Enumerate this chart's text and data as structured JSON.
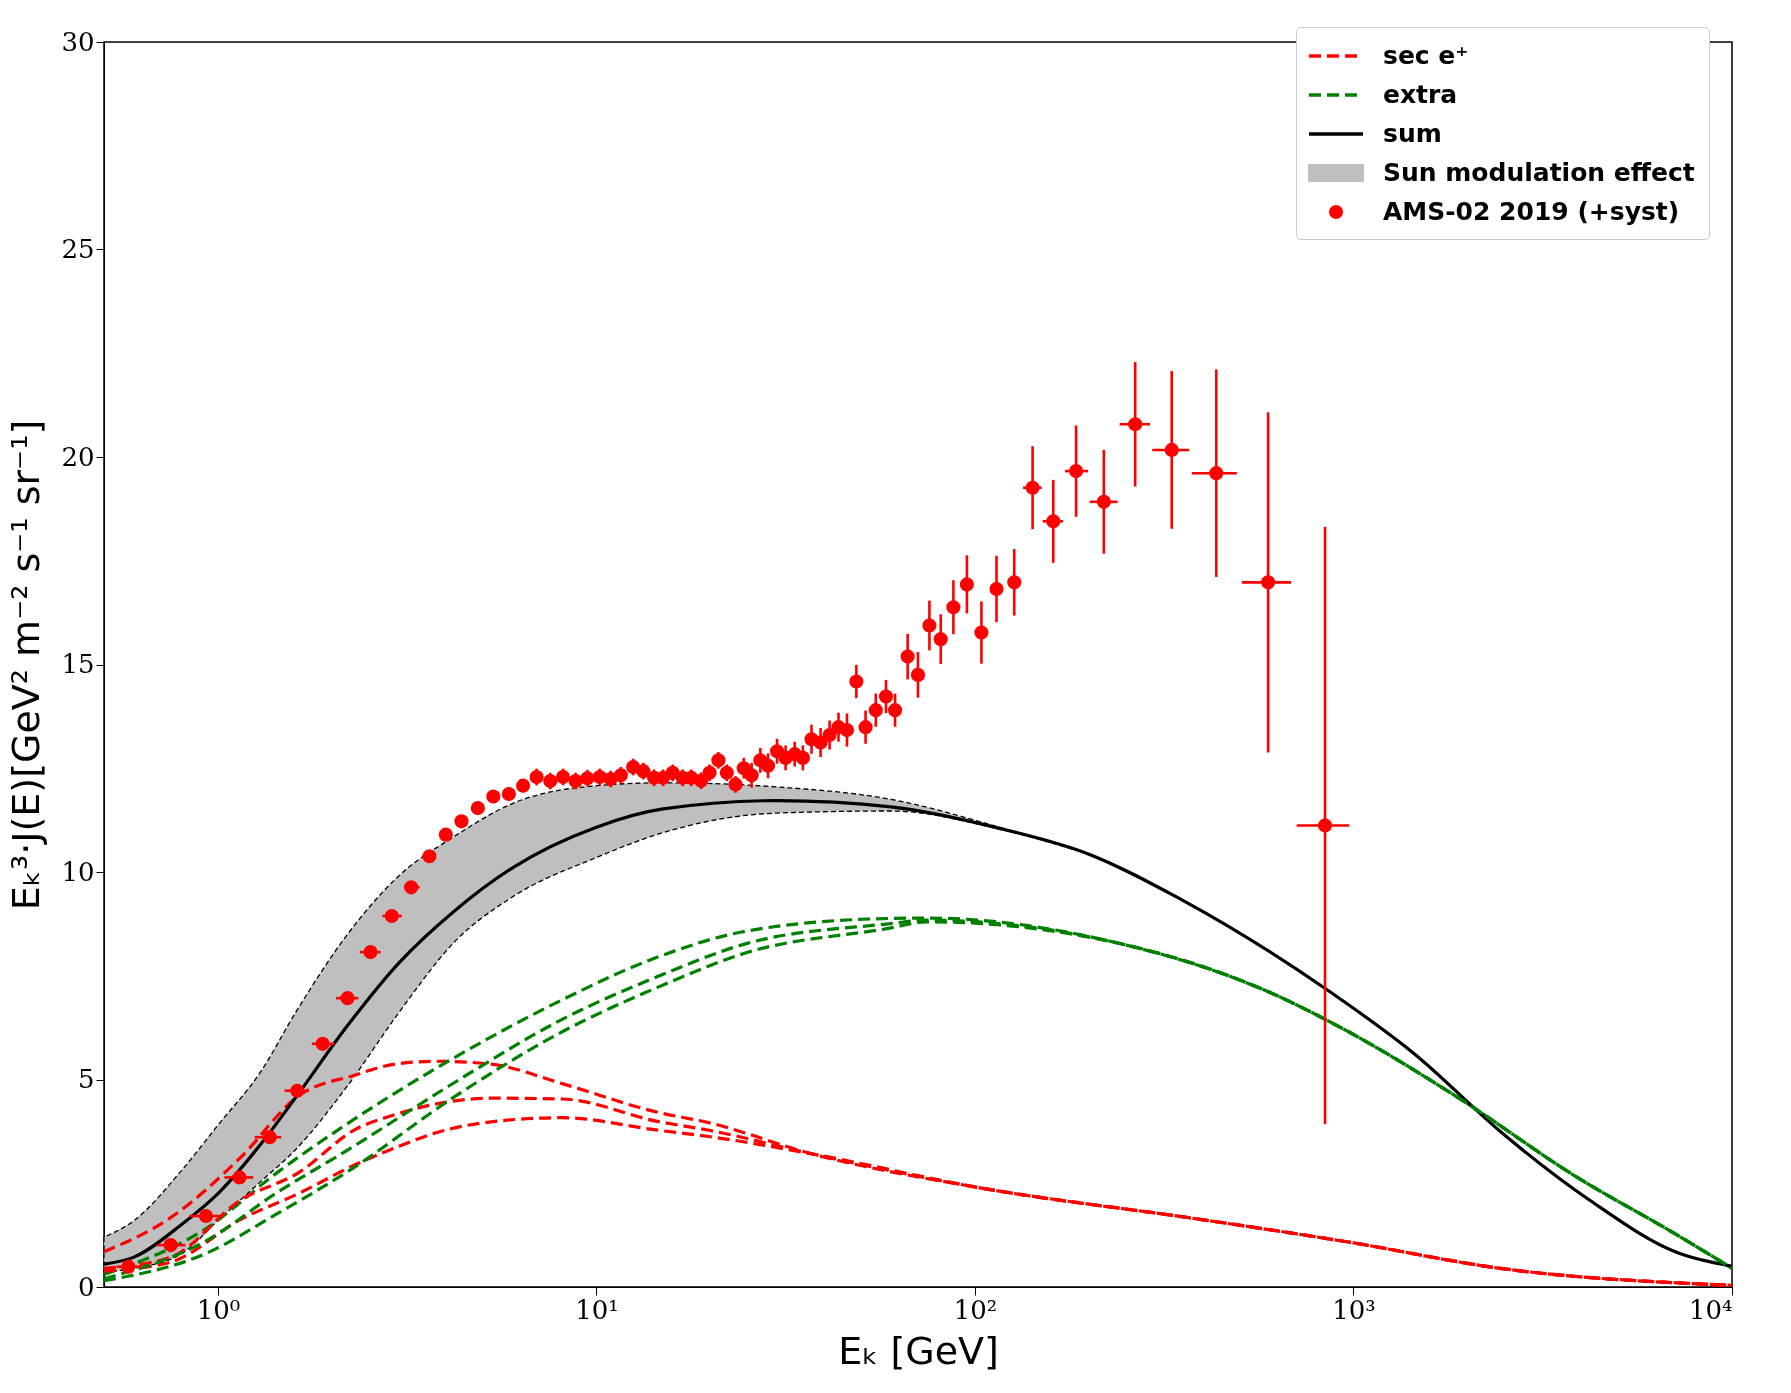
{
  "chart_data": {
    "type": "line",
    "xlabel": "Eₖ [GeV]",
    "ylabel": "Eₖ³·J(E)[GeV² m⁻² s⁻¹ sr⁻¹]",
    "log": "x",
    "xlim": [
      0.5,
      10000
    ],
    "ylim": [
      0,
      30
    ],
    "xticks": [
      {
        "value": 1,
        "label": "10⁰"
      },
      {
        "value": 10,
        "label": "10¹"
      },
      {
        "value": 100,
        "label": "10²"
      },
      {
        "value": 1000,
        "label": "10³"
      },
      {
        "value": 10000,
        "label": "10⁴"
      }
    ],
    "yticks": [
      0,
      5,
      10,
      15,
      20,
      25,
      30
    ],
    "grid": false,
    "legend": "top right",
    "series": [
      {
        "name": "sec e⁺",
        "line_style": "dashed",
        "color": "#ff0000",
        "x": [
          0.5,
          0.75,
          1.15,
          1.63,
          2.31,
          2.93,
          3.81,
          5.27,
          8.12,
          14.5,
          20,
          37,
          103,
          380,
          961,
          2440,
          10000
        ],
        "values": [
          0.85,
          1.67,
          3.13,
          4.6,
          5.11,
          5.37,
          5.44,
          5.37,
          4.9,
          4.21,
          3.95,
          3.21,
          2.39,
          1.65,
          1.09,
          0.45,
          0.04
        ]
      },
      {
        "name": "extra",
        "line_style": "dashed",
        "color": "#008000",
        "x": [
          0.5,
          0.93,
          1.43,
          2.21,
          4.24,
          8.12,
          14.5,
          25,
          59,
          74.6,
          238,
          604,
          961,
          1930,
          3870,
          7080,
          10000
        ],
        "values": [
          0.3,
          1.41,
          2.75,
          3.95,
          5.54,
          6.92,
          7.95,
          8.58,
          8.88,
          8.89,
          8.29,
          7.09,
          6.17,
          4.51,
          2.66,
          1.28,
          0.45
        ]
      },
      {
        "name": "sum",
        "line_style": "solid",
        "color": "#000000",
        "x": [
          0.5,
          0.6,
          0.8,
          1,
          1.3,
          1.6,
          2.2,
          3,
          4.2,
          6,
          10,
          15,
          30,
          60,
          114,
          200,
          352,
          855,
          1452,
          2470,
          4210,
          7160,
          10000
        ],
        "values": [
          0.55,
          0.72,
          1.5,
          2.25,
          3.45,
          4.55,
          6.3,
          7.8,
          9.05,
          10.1,
          11.08,
          11.52,
          11.72,
          11.57,
          11.07,
          10.43,
          9.33,
          7.15,
          5.61,
          3.71,
          2.09,
          0.83,
          0.5
        ]
      },
      {
        "name": "Sun modulation effect",
        "color": "#bfbfbf",
        "x": [
          0.5,
          0.6,
          0.8,
          1,
          1.3,
          1.6,
          2.2,
          3,
          4.2,
          6,
          10,
          15,
          30,
          60,
          114,
          200
        ],
        "values": [
          null,
          null,
          null,
          null,
          null,
          null,
          null,
          null,
          null,
          null,
          null,
          null,
          null,
          null,
          null,
          null
        ],
        "upper": [
          1.2,
          1.6,
          2.8,
          3.9,
          5.2,
          6.6,
          8.5,
          9.9,
          10.85,
          11.65,
          12.08,
          12.15,
          12.05,
          11.75,
          11.1,
          10.43
        ],
        "lower": [
          0.35,
          0.45,
          0.8,
          1.6,
          2.55,
          3.3,
          4.85,
          6.6,
          8.3,
          9.4,
          10.35,
          10.95,
          11.42,
          11.47,
          11.05,
          10.43
        ]
      },
      {
        "name": "AMS-02 2019 (+syst)",
        "type": "scatter",
        "marker": "circle",
        "color": "#ff0000",
        "x": [
          0.58,
          0.75,
          0.93,
          1.14,
          1.37,
          1.62,
          1.89,
          2.2,
          2.53,
          2.88,
          3.24,
          3.62,
          4.0,
          4.4,
          4.86,
          5.34,
          5.87,
          6.4,
          6.95,
          7.55,
          8.16,
          8.81,
          9.46,
          10.2,
          10.9,
          11.6,
          12.5,
          13.3,
          14.2,
          15.0,
          15.9,
          16.9,
          17.8,
          18.9,
          19.9,
          21.0,
          22.1,
          23.3,
          24.5,
          25.7,
          27.1,
          28.4,
          30.0,
          31.6,
          33.4,
          35.1,
          37.0,
          39.1,
          41.3,
          43.6,
          45.9,
          48.6,
          51.4,
          54.7,
          58.2,
          61.5,
          66.4,
          70.7,
          75.8,
          81.2,
          87.7,
          95.2,
          104,
          114,
          127,
          142,
          161,
          185,
          219,
          265,
          331,
          434,
          595,
          841
        ],
        "values": [
          0.49,
          1.01,
          1.71,
          2.64,
          3.61,
          4.73,
          5.86,
          6.96,
          8.07,
          8.94,
          9.63,
          10.38,
          10.9,
          11.22,
          11.54,
          11.82,
          11.88,
          12.08,
          12.29,
          12.19,
          12.29,
          12.19,
          12.26,
          12.29,
          12.24,
          12.33,
          12.53,
          12.43,
          12.27,
          12.27,
          12.39,
          12.27,
          12.27,
          12.2,
          12.39,
          12.69,
          12.39,
          12.11,
          12.5,
          12.33,
          12.69,
          12.56,
          12.91,
          12.75,
          12.84,
          12.75,
          13.2,
          13.12,
          13.3,
          13.49,
          13.42,
          14.59,
          13.49,
          13.9,
          14.23,
          13.9,
          15.19,
          14.75,
          15.94,
          15.61,
          16.38,
          16.93,
          15.77,
          16.82,
          16.98,
          19.26,
          18.45,
          19.66,
          18.92,
          20.79,
          20.17,
          19.61,
          16.98,
          11.12
        ],
        "errors": [
          0.1,
          0.1,
          0.1,
          0.1,
          0.1,
          0.1,
          0.1,
          0.1,
          0.1,
          0.1,
          0.1,
          0.15,
          0.15,
          0.15,
          0.15,
          0.15,
          0.15,
          0.15,
          0.2,
          0.2,
          0.2,
          0.2,
          0.2,
          0.2,
          0.2,
          0.2,
          0.2,
          0.2,
          0.2,
          0.2,
          0.2,
          0.2,
          0.2,
          0.2,
          0.2,
          0.2,
          0.2,
          0.2,
          0.25,
          0.3,
          0.3,
          0.3,
          0.3,
          0.3,
          0.3,
          0.3,
          0.35,
          0.35,
          0.35,
          0.35,
          0.4,
          0.4,
          0.4,
          0.4,
          0.4,
          0.4,
          0.55,
          0.55,
          0.6,
          0.6,
          0.65,
          0.7,
          0.75,
          0.8,
          0.8,
          1.0,
          1.0,
          1.1,
          1.25,
          1.5,
          1.9,
          2.5,
          4.1,
          7.2
        ],
        "xerrors": [
          [
            0.54,
            0.63
          ],
          [
            0.69,
            0.82
          ],
          [
            0.84,
            1.02
          ],
          [
            1.04,
            1.24
          ],
          [
            1.25,
            1.47
          ],
          [
            1.5,
            1.74
          ],
          [
            1.77,
            2.03
          ],
          [
            2.05,
            2.35
          ],
          [
            2.37,
            2.69
          ],
          [
            2.72,
            3.06
          ],
          [
            3.1,
            3.41
          ],
          null,
          null,
          null,
          null,
          null,
          null,
          null,
          null,
          null,
          null,
          null,
          null,
          null,
          null,
          null,
          null,
          null,
          null,
          null,
          null,
          null,
          null,
          null,
          null,
          null,
          null,
          null,
          null,
          null,
          null,
          null,
          null,
          null,
          null,
          null,
          null,
          null,
          null,
          null,
          null,
          null,
          null,
          null,
          null,
          null,
          null,
          null,
          null,
          null,
          null,
          null,
          null,
          null,
          null,
          [
            134,
            150
          ],
          [
            151,
            171
          ],
          [
            173,
            199
          ],
          [
            201,
            238
          ],
          [
            241,
            290
          ],
          [
            294,
            368
          ],
          [
            374,
            492
          ],
          [
            507,
            684
          ],
          [
            708,
            975
          ]
        ]
      },
      {
        "line_style": "dashed",
        "color": "#ff0000",
        "x": [
          0.5,
          0.75,
          1.15,
          1.63,
          2.31,
          2.93,
          3.81,
          5.27,
          8.12,
          14.5,
          20,
          37,
          103,
          380,
          961,
          2440,
          10000
        ],
        "values": [
          0.45,
          0.72,
          2.1,
          2.75,
          3.8,
          4.15,
          4.42,
          4.55,
          4.53,
          3.99,
          3.77,
          3.21,
          2.39,
          1.65,
          1.09,
          0.45,
          0.04
        ]
      },
      {
        "line_style": "dashed",
        "color": "#ff0000",
        "x": [
          0.5,
          0.75,
          1.15,
          1.63,
          2.31,
          2.93,
          3.81,
          5.27,
          8.12,
          14.5,
          20,
          37,
          103,
          380,
          961,
          2440,
          10000
        ],
        "values": [
          0.38,
          0.6,
          1.63,
          2.25,
          2.95,
          3.35,
          3.73,
          3.98,
          4.08,
          3.78,
          3.62,
          3.21,
          2.39,
          1.65,
          1.09,
          0.45,
          0.04
        ]
      },
      {
        "line_style": "dashed",
        "color": "#008000",
        "x": [
          0.5,
          0.93,
          1.43,
          2.21,
          4.24,
          8.12,
          14.5,
          25,
          59,
          74.6,
          238,
          604,
          961,
          1930,
          3870,
          7080,
          10000
        ],
        "values": [
          0.2,
          1.11,
          2.27,
          3.31,
          4.94,
          6.45,
          7.48,
          8.28,
          8.75,
          8.84,
          8.29,
          7.09,
          6.17,
          4.51,
          2.66,
          1.28,
          0.45
        ]
      },
      {
        "line_style": "dashed",
        "color": "#008000",
        "x": [
          0.5,
          0.93,
          1.43,
          2.21,
          4.24,
          8.12,
          14.5,
          25,
          59,
          74.6,
          238,
          604,
          961,
          1930,
          3870,
          7080,
          10000
        ],
        "values": [
          0.15,
          0.81,
          1.76,
          2.79,
          4.6,
          6.15,
          7.22,
          8.06,
          8.64,
          8.8,
          8.29,
          7.09,
          6.17,
          4.51,
          2.66,
          1.28,
          0.45
        ]
      }
    ]
  }
}
